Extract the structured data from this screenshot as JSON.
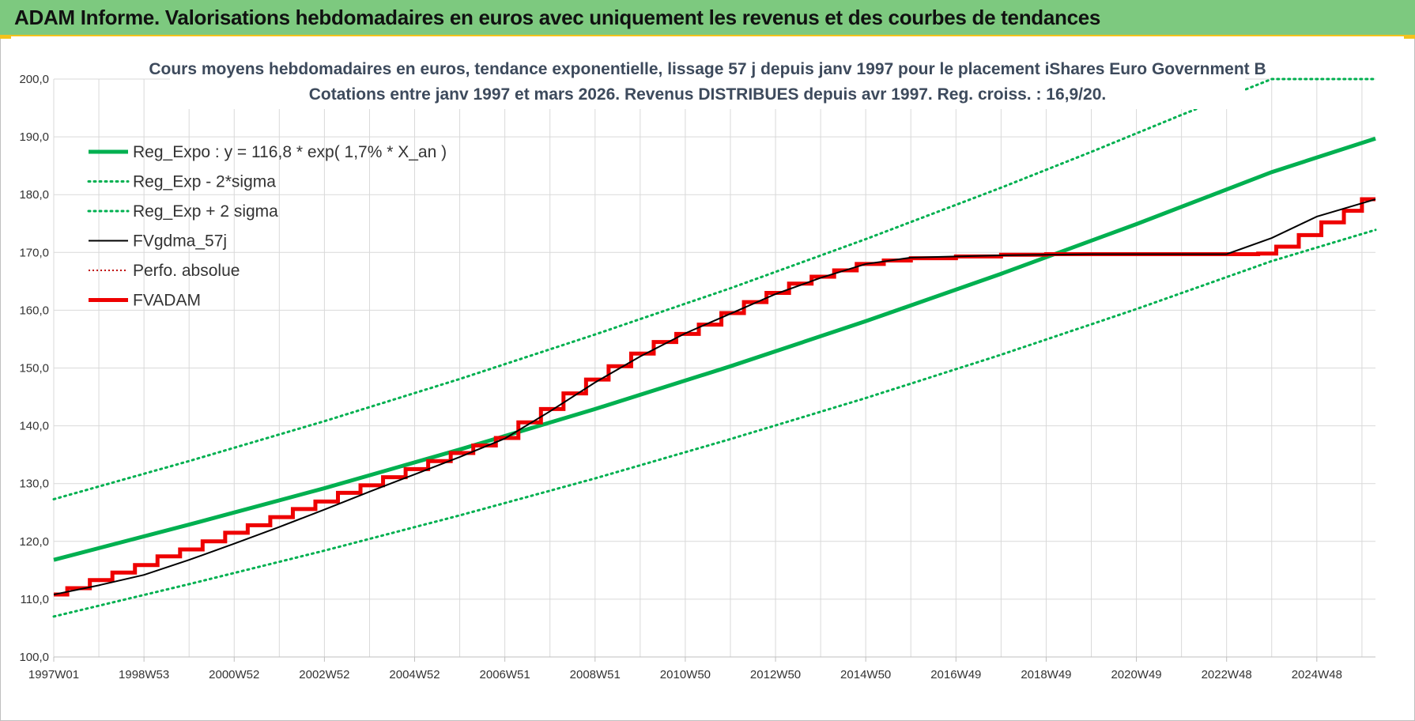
{
  "banner": {
    "title": "ADAM Informe. Valorisations hebdomadaires en euros avec uniquement les revenus et des courbes de tendances"
  },
  "colors": {
    "banner_bg": "#7dc97f",
    "accent_yellow": "#f3c21d",
    "green": "#00b050",
    "red": "#ee0000",
    "black": "#000000",
    "grid": "#d9d9d9"
  },
  "chart_data": {
    "type": "line",
    "title_line1": "Cours moyens hebdomadaires en euros, tendance exponentielle, lissage 57 j depuis janv 1997 pour le placement iShares Euro Government B",
    "title_line2": "Cotations entre janv 1997 et mars 2026. Revenus DISTRIBUES depuis avr 1997. Reg. croiss. : 16,9/20.",
    "ylim": [
      100,
      200
    ],
    "yticks": [
      "100,0",
      "110,0",
      "120,0",
      "130,0",
      "140,0",
      "150,0",
      "160,0",
      "170,0",
      "180,0",
      "190,0",
      "200,0"
    ],
    "xlim": [
      1997.0,
      2026.3
    ],
    "xticks": [
      {
        "label": "1997W01",
        "x": 1997.0
      },
      {
        "label": "1998W53",
        "x": 1999.0
      },
      {
        "label": "2000W52",
        "x": 2001.0
      },
      {
        "label": "2002W52",
        "x": 2003.0
      },
      {
        "label": "2004W52",
        "x": 2005.0
      },
      {
        "label": "2006W51",
        "x": 2007.0
      },
      {
        "label": "2008W51",
        "x": 2009.0
      },
      {
        "label": "2010W50",
        "x": 2011.0
      },
      {
        "label": "2012W50",
        "x": 2013.0
      },
      {
        "label": "2014W50",
        "x": 2015.0
      },
      {
        "label": "2016W49",
        "x": 2017.0
      },
      {
        "label": "2018W49",
        "x": 2019.0
      },
      {
        "label": "2020W49",
        "x": 2021.0
      },
      {
        "label": "2022W48",
        "x": 2023.0
      },
      {
        "label": "2024W48",
        "x": 2025.0
      }
    ],
    "grid": true,
    "legend_position": "top-left",
    "series": [
      {
        "name": "Reg_Expo : y = 116,8 * exp( 1,7% *  X_an )",
        "style": "solid-thick",
        "color": "#00b050",
        "points": [
          [
            1997.0,
            116.8
          ],
          [
            2000.0,
            122.9
          ],
          [
            2003.0,
            129.2
          ],
          [
            2006.0,
            135.9
          ],
          [
            2009.0,
            142.9
          ],
          [
            2012.0,
            150.3
          ],
          [
            2015.0,
            158.1
          ],
          [
            2018.0,
            166.3
          ],
          [
            2021.0,
            174.9
          ],
          [
            2024.0,
            183.9
          ],
          [
            2026.3,
            189.7
          ]
        ]
      },
      {
        "name": "Reg_Exp - 2*sigma",
        "style": "dotted",
        "color": "#00b050",
        "points": [
          [
            1997.0,
            107.0
          ],
          [
            2000.0,
            112.6
          ],
          [
            2003.0,
            118.4
          ],
          [
            2006.0,
            124.5
          ],
          [
            2009.0,
            130.9
          ],
          [
            2012.0,
            137.7
          ],
          [
            2015.0,
            144.8
          ],
          [
            2018.0,
            152.3
          ],
          [
            2021.0,
            160.2
          ],
          [
            2024.0,
            168.5
          ],
          [
            2026.3,
            173.9
          ]
        ]
      },
      {
        "name": "Reg_Exp + 2 sigma",
        "style": "dotted",
        "color": "#00b050",
        "points": [
          [
            1997.0,
            127.3
          ],
          [
            2000.0,
            133.9
          ],
          [
            2003.0,
            140.8
          ],
          [
            2006.0,
            148.1
          ],
          [
            2009.0,
            155.8
          ],
          [
            2012.0,
            163.8
          ],
          [
            2015.0,
            172.3
          ],
          [
            2018.0,
            181.2
          ],
          [
            2020.0,
            187.4
          ],
          [
            2022.0,
            193.8
          ],
          [
            2024.0,
            200.0
          ],
          [
            2026.3,
            200.0
          ]
        ]
      },
      {
        "name": "FVgdma_57j",
        "style": "solid-thin",
        "color": "#000000",
        "points": [
          [
            1997.0,
            110.8
          ],
          [
            1998.0,
            112.4
          ],
          [
            1999.0,
            114.2
          ],
          [
            2000.0,
            116.8
          ],
          [
            2001.0,
            119.6
          ],
          [
            2002.0,
            122.5
          ],
          [
            2003.0,
            125.5
          ],
          [
            2004.0,
            128.6
          ],
          [
            2005.0,
            131.6
          ],
          [
            2006.0,
            134.6
          ],
          [
            2007.0,
            137.8
          ],
          [
            2008.0,
            142.5
          ],
          [
            2009.0,
            147.5
          ],
          [
            2010.0,
            152.0
          ],
          [
            2011.0,
            156.0
          ],
          [
            2012.0,
            159.4
          ],
          [
            2013.0,
            162.8
          ],
          [
            2014.0,
            165.6
          ],
          [
            2015.0,
            168.0
          ],
          [
            2016.0,
            169.1
          ],
          [
            2017.0,
            169.3
          ],
          [
            2018.0,
            169.5
          ],
          [
            2019.0,
            169.6
          ],
          [
            2020.0,
            169.7
          ],
          [
            2021.0,
            169.7
          ],
          [
            2022.0,
            169.7
          ],
          [
            2023.0,
            169.7
          ],
          [
            2024.0,
            172.5
          ],
          [
            2025.0,
            176.2
          ],
          [
            2026.3,
            179.2
          ]
        ]
      },
      {
        "name": "Perfo. absolue",
        "style": "dotted-red",
        "color": "#c00000",
        "points": []
      },
      {
        "name": "FVADAM",
        "style": "step-thick",
        "color": "#ee0000",
        "points": [
          [
            1997.0,
            110.8
          ],
          [
            1997.3,
            111.9
          ],
          [
            1997.8,
            113.3
          ],
          [
            1998.3,
            114.6
          ],
          [
            1998.8,
            115.9
          ],
          [
            1999.3,
            117.4
          ],
          [
            1999.8,
            118.6
          ],
          [
            2000.3,
            120.0
          ],
          [
            2000.8,
            121.5
          ],
          [
            2001.3,
            122.8
          ],
          [
            2001.8,
            124.2
          ],
          [
            2002.3,
            125.6
          ],
          [
            2002.8,
            126.9
          ],
          [
            2003.3,
            128.4
          ],
          [
            2003.8,
            129.7
          ],
          [
            2004.3,
            131.1
          ],
          [
            2004.8,
            132.5
          ],
          [
            2005.3,
            133.9
          ],
          [
            2005.8,
            135.3
          ],
          [
            2006.3,
            136.6
          ],
          [
            2006.8,
            137.9
          ],
          [
            2007.3,
            140.6
          ],
          [
            2007.8,
            142.9
          ],
          [
            2008.3,
            145.6
          ],
          [
            2008.8,
            148.0
          ],
          [
            2009.3,
            150.3
          ],
          [
            2009.8,
            152.5
          ],
          [
            2010.3,
            154.5
          ],
          [
            2010.8,
            155.9
          ],
          [
            2011.3,
            157.5
          ],
          [
            2011.8,
            159.5
          ],
          [
            2012.3,
            161.4
          ],
          [
            2012.8,
            163.0
          ],
          [
            2013.3,
            164.6
          ],
          [
            2013.8,
            165.8
          ],
          [
            2014.3,
            166.9
          ],
          [
            2014.8,
            168.0
          ],
          [
            2015.4,
            168.6
          ],
          [
            2016.0,
            169.0
          ],
          [
            2017.0,
            169.3
          ],
          [
            2018.0,
            169.6
          ],
          [
            2019.0,
            169.7
          ],
          [
            2023.7,
            169.8
          ],
          [
            2024.1,
            171.0
          ],
          [
            2024.6,
            173.0
          ],
          [
            2025.1,
            175.2
          ],
          [
            2025.6,
            177.2
          ],
          [
            2026.0,
            179.2
          ],
          [
            2026.3,
            179.2
          ]
        ]
      }
    ]
  }
}
